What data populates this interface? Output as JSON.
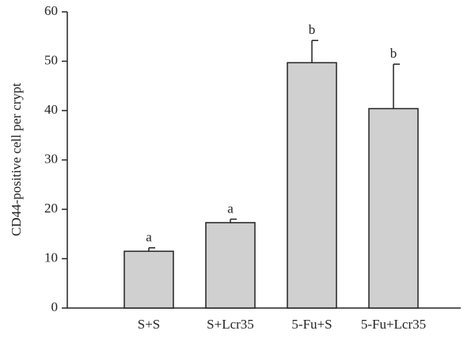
{
  "chart_data": {
    "type": "bar",
    "y_label": "CD44-positive cell per crypt",
    "categories": [
      "S+S",
      "S+Lcr35",
      "5-Fu+S",
      "5-Fu+Lcr35"
    ],
    "values": [
      11.5,
      17.3,
      49.7,
      40.4
    ],
    "errors": [
      0.7,
      0.7,
      4.5,
      9.0
    ],
    "annotations": [
      "a",
      "a",
      "b",
      "b"
    ],
    "color": "#d0d0d0",
    "ylim": [
      0,
      60
    ],
    "yticks": [
      0,
      10,
      20,
      30,
      40,
      50,
      60
    ]
  }
}
